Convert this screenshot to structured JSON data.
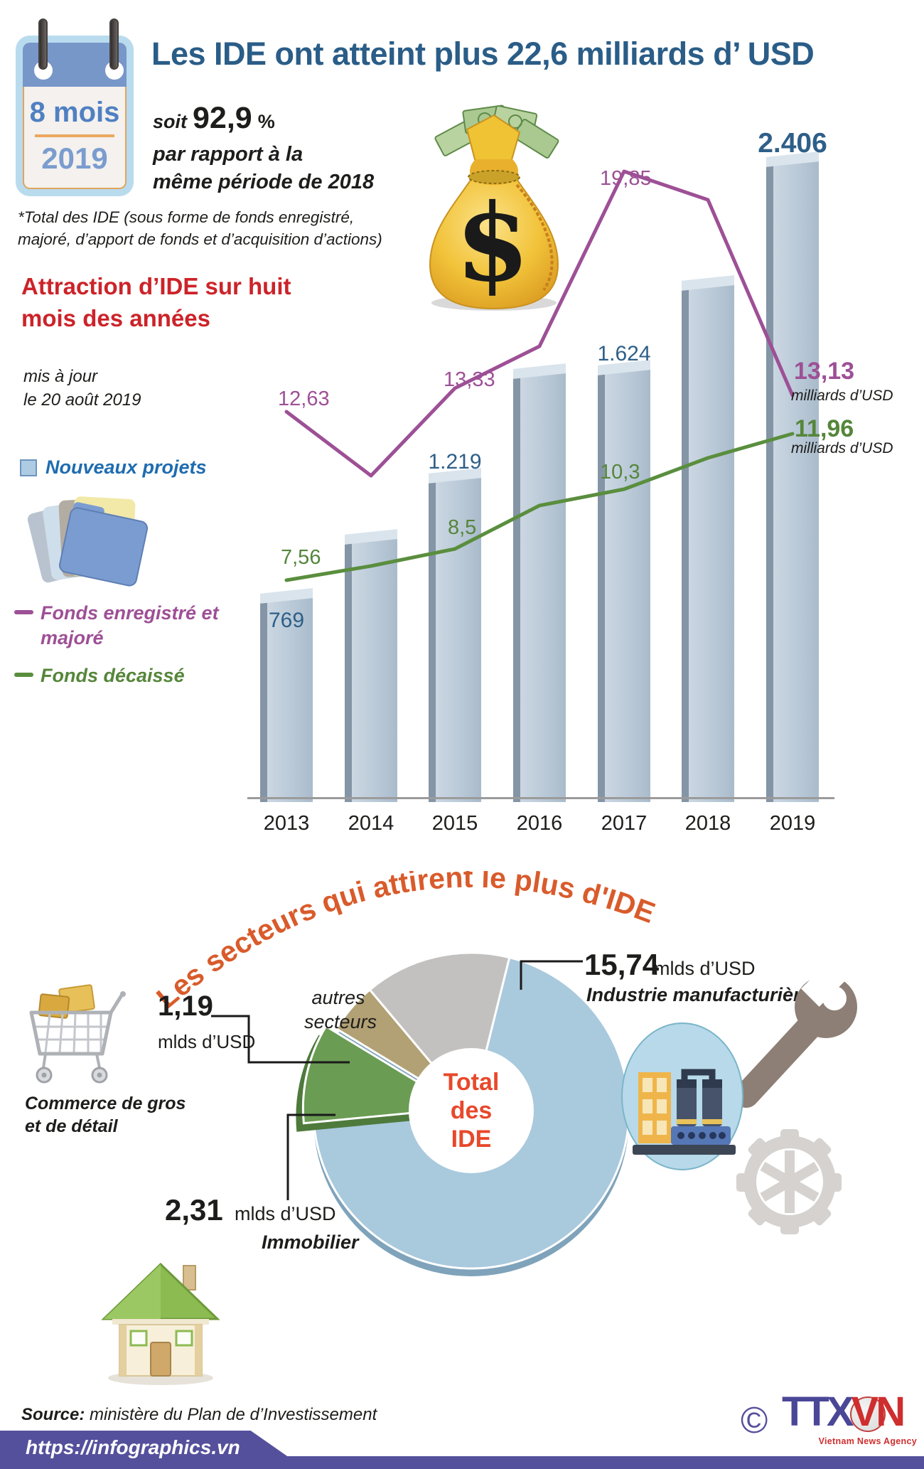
{
  "meta": {
    "copyright": "©",
    "brand_t1": "TTX",
    "brand_t2": "VN",
    "brand_sub": "Vietnam News Agency"
  },
  "header": {
    "calendar_line1": "8 mois",
    "calendar_line2": "2019",
    "title": "Les IDE ont atteint plus 22,6 milliards d’ USD",
    "soit": "soit",
    "percent_value": "92,9",
    "percent_sign": "%",
    "compare_line1": "par rapport à la",
    "compare_line2": "même période de 2018",
    "note_line1": "*Total des IDE (sous forme de fonds enregistré,",
    "note_line2": "majoré, d’apport de fonds et d’acquisition d’actions)"
  },
  "section1": {
    "heading_line1": "Attraction d’IDE sur huit",
    "heading_line2": "mois des années",
    "updated_line1": "mis à jour",
    "updated_line2": "le 20 août 2019",
    "legend_new_projects": "Nouveaux projets",
    "legend_registered_line1": "Fonds enregistré et",
    "legend_registered_line2": "majoré",
    "legend_disbursed": "Fonds décaissé"
  },
  "section2": {
    "title": "Les secteurs qui attirent le plus d'IDE",
    "autres_line1": "autres",
    "autres_line2": "secteurs",
    "center_line1": "Total",
    "center_line2": "des",
    "center_line3": "IDE",
    "callouts": {
      "manufacturing": {
        "value": "15,74",
        "unit": "mlds d’USD",
        "label": "Industrie manufacturière"
      },
      "commerce": {
        "value": "1,19",
        "unit": "mlds d’USD",
        "label_line1": "Commerce de gros",
        "label_line2": "et de détail"
      },
      "immobilier": {
        "value": "2,31",
        "unit": "mlds d’USD",
        "label": "Immobilier"
      }
    }
  },
  "footer": {
    "source_label": "Source:",
    "source_text": " ministère du Plan de d’Investissement",
    "url": "https://infographics.vn"
  },
  "chart_data": [
    {
      "type": "bar",
      "title": "Attraction d’IDE sur huit mois des années",
      "subtitle": "mis à jour le 20 août 2019",
      "categories": [
        "2013",
        "2014",
        "2015",
        "2016",
        "2017",
        "2018",
        "2019"
      ],
      "series": [
        {
          "name": "Nouveaux projets",
          "kind": "bar",
          "color": "#bccbd9",
          "values": [
            769,
            990,
            1219,
            1610,
            1624,
            1940,
            2406
          ],
          "point_labels": [
            {
              "index": 0,
              "text": "769"
            },
            {
              "index": 2,
              "text": "1.219"
            },
            {
              "index": 4,
              "text": "1.624"
            },
            {
              "index": 6,
              "text": "2.406"
            }
          ]
        },
        {
          "name": "Fonds enregistré et majoré",
          "kind": "line",
          "color": "#9d5096",
          "unit": "milliards d’USD",
          "values": [
            12.63,
            10.7,
            13.33,
            14.6,
            19.85,
            19.0,
            13.13
          ],
          "point_labels": [
            {
              "index": 0,
              "text": "12,63"
            },
            {
              "index": 2,
              "text": "13,33"
            },
            {
              "index": 4,
              "text": "19,85"
            }
          ],
          "end_value": "13,13",
          "end_unit": "milliards d’USD"
        },
        {
          "name": "Fonds décaissé",
          "kind": "line",
          "color": "#5a8e3e",
          "unit": "milliards d’USD",
          "values": [
            7.56,
            8.0,
            8.5,
            9.8,
            10.3,
            11.25,
            11.96
          ],
          "point_labels": [
            {
              "index": 0,
              "text": "7,56"
            },
            {
              "index": 2,
              "text": "8,5"
            },
            {
              "index": 4,
              "text": "10,3"
            }
          ],
          "end_value": "11,96",
          "end_unit": "milliards d’USD"
        }
      ]
    },
    {
      "type": "pie",
      "title": "Les secteurs qui attirent le plus d'IDE",
      "center_label": "Total des IDE",
      "slices": [
        {
          "label": "Industrie manufacturière",
          "pct": 69.6,
          "pct_text": "69,6%",
          "amount": "15,74 mlds d’USD",
          "color": "#a9c9dd"
        },
        {
          "label": "Immobilier",
          "pct": 10.2,
          "pct_text": "10,2%",
          "amount": "2,31 mlds d’USD",
          "color": "#6a9c53"
        },
        {
          "label": "Commerce de gros et de détail",
          "pct": 5.2,
          "pct_text": "5,2%",
          "amount": "1,19 mlds d’USD",
          "color": "#b2a175"
        },
        {
          "label": "autres secteurs",
          "pct": 15.0,
          "pct_text": "",
          "amount": "",
          "color": "#c3c1bf"
        }
      ]
    }
  ]
}
